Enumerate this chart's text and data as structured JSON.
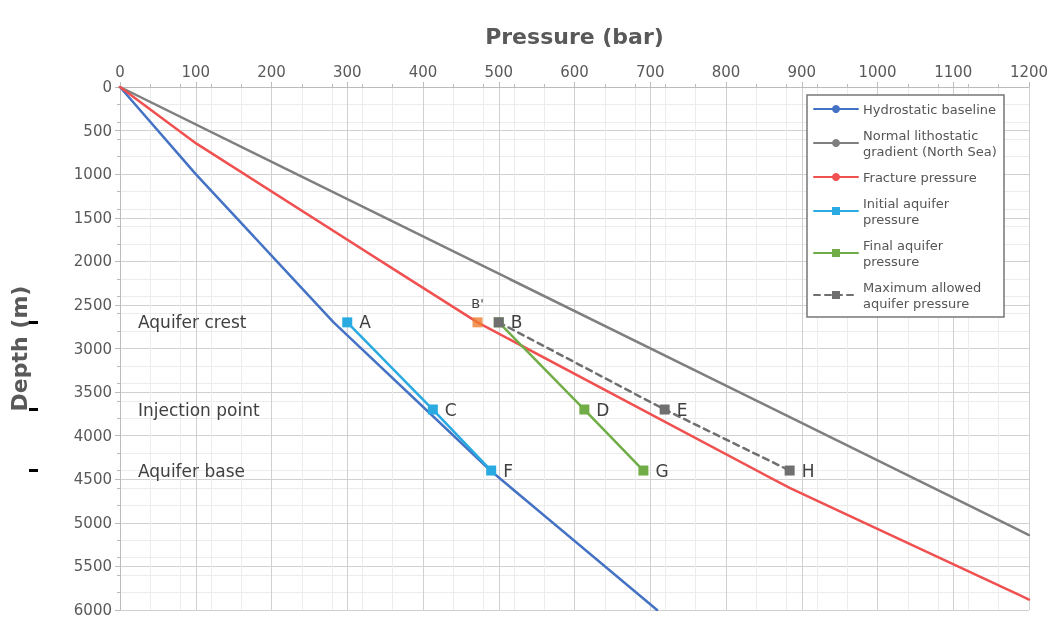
{
  "chart_data": {
    "type": "line",
    "xlabel": "Pressure (bar)",
    "ylabel": "Depth (m)",
    "xlim": [
      0,
      1200
    ],
    "xticks": [
      0,
      100,
      200,
      300,
      400,
      500,
      600,
      700,
      800,
      900,
      1000,
      1100,
      1200
    ],
    "ylim": [
      6000,
      0
    ],
    "yticks": [
      0,
      500,
      1000,
      1500,
      2000,
      2500,
      3000,
      3500,
      4000,
      4500,
      5000,
      5500,
      6000
    ],
    "grid": true,
    "legend": "top right",
    "marker": "none",
    "line_style": "solid",
    "series": [
      {
        "name": "Hydrostatic baseline",
        "color": "#4472c4",
        "x": [
          0,
          100,
          282,
          489,
          709
        ],
        "values": [
          0,
          1000,
          2700,
          4400,
          6000
        ]
      },
      {
        "name": "Normal lithostatic gradient (North Sea)",
        "color": "#7f7f7f",
        "x": [
          0,
          1200
        ],
        "values": [
          0,
          5140
        ]
      },
      {
        "name": "Fracture pressure",
        "color": "#f05050",
        "x": [
          0,
          101,
          372,
          472,
          884,
          1200
        ],
        "values": [
          0,
          650,
          2150,
          2700,
          4600,
          5880
        ]
      },
      {
        "name": "Initial aquifer pressure",
        "color": "#29abe2",
        "marker": "square",
        "x": [
          300,
          413,
          490
        ],
        "values": [
          2700,
          3700,
          4400
        ]
      },
      {
        "name": "Final aquifer pressure",
        "color": "#70ad47",
        "marker": "square",
        "x": [
          500,
          613,
          691
        ],
        "values": [
          2700,
          3700,
          4400
        ]
      },
      {
        "name": "Maximum allowed aquifer pressure",
        "color": "#6f6f6f",
        "marker": "square",
        "line_style": "dashed",
        "x": [
          500,
          719,
          884
        ],
        "values": [
          2700,
          3700,
          4400
        ]
      },
      {
        "type": "scatter",
        "color": "#ed7d31",
        "marker": "square",
        "x": [
          472
        ],
        "values": [
          2700
        ]
      }
    ],
    "annotations": [
      {
        "text": "A",
        "x": 300,
        "y": 2700
      },
      {
        "text": "B'",
        "x": 472,
        "y": 2700
      },
      {
        "text": "B",
        "x": 500,
        "y": 2700
      },
      {
        "text": "C",
        "x": 413,
        "y": 3700
      },
      {
        "text": "D",
        "x": 613,
        "y": 3700
      },
      {
        "text": "E",
        "x": 719,
        "y": 3700
      },
      {
        "text": "F",
        "x": 490,
        "y": 4400
      },
      {
        "text": "G",
        "x": 691,
        "y": 4400
      },
      {
        "text": "H",
        "x": 884,
        "y": 4400
      },
      "Aquifer crest",
      "Injection point",
      "Aquifer base"
    ]
  }
}
